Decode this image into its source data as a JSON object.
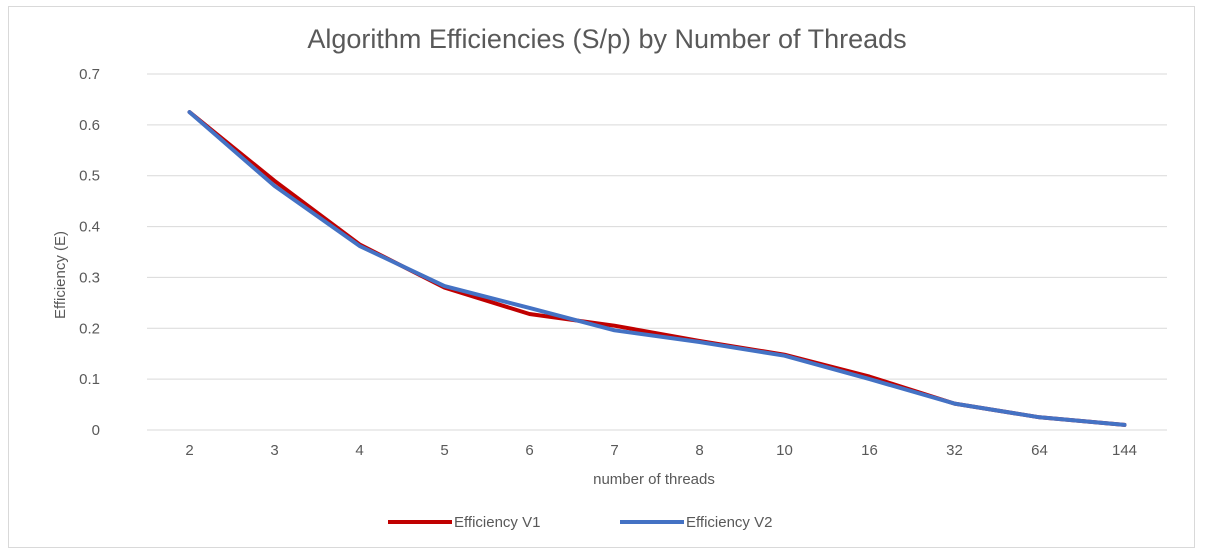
{
  "chart_data": {
    "type": "line",
    "title": "Algorithm Efficiencies (S/p) by Number of Threads",
    "xlabel": "number of threads",
    "ylabel": "Efficiency (E)",
    "categories": [
      "2",
      "3",
      "4",
      "5",
      "6",
      "7",
      "8",
      "10",
      "16",
      "32",
      "64",
      "144"
    ],
    "yticks": [
      "0",
      "0.1",
      "0.2",
      "0.3",
      "0.4",
      "0.5",
      "0.6",
      "0.7"
    ],
    "ylim": [
      0,
      0.7
    ],
    "grid": true,
    "legend_position": "bottom",
    "series": [
      {
        "name": "Efficiency V1",
        "color": "#c00000",
        "values": [
          0.625,
          0.49,
          0.365,
          0.28,
          0.228,
          0.205,
          0.175,
          0.148,
          0.105,
          0.052,
          0.025,
          0.01
        ]
      },
      {
        "name": "Efficiency V2",
        "color": "#4472c4",
        "values": [
          0.625,
          0.48,
          0.362,
          0.283,
          0.24,
          0.196,
          0.173,
          0.146,
          0.1,
          0.052,
          0.025,
          0.01
        ]
      }
    ]
  }
}
